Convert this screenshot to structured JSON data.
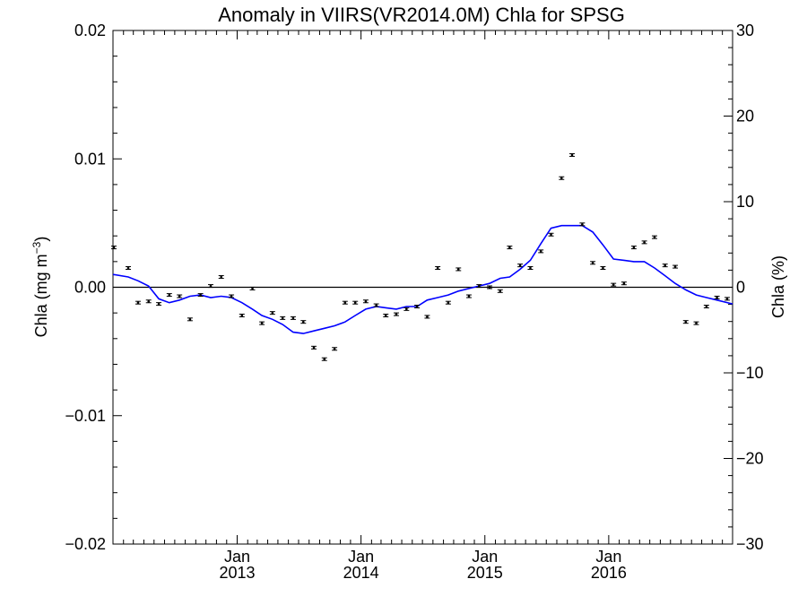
{
  "chart_data": {
    "type": "scatter",
    "title": "Anomaly in VIIRS(VR2014.0M) Chla for SPSG",
    "ylabel_left": "Chla (mg m",
    "ylabel_left_sup": "−3",
    "ylabel_left_end": ")",
    "ylabel_right": "Chla (%)",
    "ylim_left": [
      -0.02,
      0.02
    ],
    "ylim_right": [
      -30,
      30
    ],
    "xlim": [
      "2012-01-01",
      "2016-12-31"
    ],
    "grid": false,
    "legend": "none",
    "left_ticks": [
      {
        "value": 0.02,
        "label": "0.02"
      },
      {
        "value": 0.01,
        "label": "0.01"
      },
      {
        "value": 0.0,
        "label": "0.00"
      },
      {
        "value": -0.01,
        "label": "−0.01"
      },
      {
        "value": -0.02,
        "label": "−0.02"
      }
    ],
    "right_ticks": [
      {
        "value": 30,
        "label": "30"
      },
      {
        "value": 20,
        "label": "20"
      },
      {
        "value": 10,
        "label": "10"
      },
      {
        "value": 0,
        "label": "0"
      },
      {
        "value": -10,
        "label": "−10"
      },
      {
        "value": -20,
        "label": "−20"
      },
      {
        "value": -30,
        "label": "−30"
      }
    ],
    "x_ticks": [
      {
        "date": "2013-01-01",
        "month": "Jan",
        "year": "2013"
      },
      {
        "date": "2014-01-01",
        "month": "Jan",
        "year": "2014"
      },
      {
        "date": "2015-01-01",
        "month": "Jan",
        "year": "2015"
      },
      {
        "date": "2016-01-01",
        "month": "Jan",
        "year": "2016"
      }
    ],
    "colors": {
      "points": "#000000",
      "smooth_line": "#0000ff",
      "zero_line": "#000000"
    },
    "monthly_anomaly": {
      "x": [
        "2012-01",
        "2012-02",
        "2012-03",
        "2012-04",
        "2012-05",
        "2012-06",
        "2012-07",
        "2012-08",
        "2012-09",
        "2012-10",
        "2012-11",
        "2012-12",
        "2013-01",
        "2013-02",
        "2013-03",
        "2013-04",
        "2013-05",
        "2013-06",
        "2013-07",
        "2013-08",
        "2013-09",
        "2013-10",
        "2013-11",
        "2013-12",
        "2014-01",
        "2014-02",
        "2014-03",
        "2014-04",
        "2014-05",
        "2014-06",
        "2014-07",
        "2014-08",
        "2014-09",
        "2014-10",
        "2014-11",
        "2014-12",
        "2015-01",
        "2015-02",
        "2015-03",
        "2015-04",
        "2015-05",
        "2015-06",
        "2015-07",
        "2015-08",
        "2015-09",
        "2015-10",
        "2015-11",
        "2015-12",
        "2016-01",
        "2016-02",
        "2016-03",
        "2016-04",
        "2016-05",
        "2016-06",
        "2016-07",
        "2016-08",
        "2016-09",
        "2016-10",
        "2016-11",
        "2016-12"
      ],
      "y": [
        0.0031,
        0.0015,
        -0.0012,
        -0.0011,
        -0.0013,
        -0.0006,
        -0.0007,
        -0.0025,
        -0.0006,
        0.0001,
        0.0008,
        -0.0007,
        -0.0022,
        -0.0001,
        -0.0028,
        -0.002,
        -0.0024,
        -0.0024,
        -0.0027,
        -0.0047,
        -0.0056,
        -0.0048,
        -0.0012,
        -0.0012,
        -0.0011,
        -0.0014,
        -0.0022,
        -0.0021,
        -0.0017,
        -0.0015,
        -0.0023,
        0.0015,
        -0.0012,
        0.0014,
        -0.0007,
        0.0001,
        0.0,
        -0.0003,
        0.0031,
        0.0017,
        0.0015,
        0.0028,
        0.0041,
        0.0085,
        0.0103,
        0.0049,
        0.0019,
        0.0015,
        0.0002,
        0.0003,
        0.0031,
        0.0035,
        0.0039,
        0.0017,
        0.0016,
        -0.0027,
        -0.0028,
        -0.0015,
        -0.0008,
        -0.0009
      ]
    },
    "smoothed_anomaly": {
      "x": [
        "2012-01",
        "2012-02",
        "2012-03",
        "2012-04",
        "2012-05",
        "2012-06",
        "2012-07",
        "2012-08",
        "2012-09",
        "2012-10",
        "2012-11",
        "2012-12",
        "2013-01",
        "2013-02",
        "2013-03",
        "2013-04",
        "2013-05",
        "2013-06",
        "2013-07",
        "2013-08",
        "2013-09",
        "2013-10",
        "2013-11",
        "2013-12",
        "2014-01",
        "2014-02",
        "2014-03",
        "2014-04",
        "2014-05",
        "2014-06",
        "2014-07",
        "2014-08",
        "2014-09",
        "2014-10",
        "2014-11",
        "2014-12",
        "2015-01",
        "2015-02",
        "2015-03",
        "2015-04",
        "2015-05",
        "2015-06",
        "2015-07",
        "2015-08",
        "2015-09",
        "2015-10",
        "2015-11",
        "2015-12",
        "2016-01",
        "2016-02",
        "2016-03",
        "2016-04",
        "2016-05",
        "2016-06",
        "2016-07",
        "2016-08",
        "2016-09",
        "2016-10",
        "2016-11",
        "2016-12"
      ],
      "y": [
        0.001,
        0.0008,
        0.0005,
        0.0001,
        -0.0009,
        -0.0012,
        -0.001,
        -0.0007,
        -0.0006,
        -0.0008,
        -0.0007,
        -0.0008,
        -0.0012,
        -0.0017,
        -0.0022,
        -0.0025,
        -0.0029,
        -0.0035,
        -0.0036,
        -0.0034,
        -0.0032,
        -0.003,
        -0.0027,
        -0.0022,
        -0.0017,
        -0.0015,
        -0.0016,
        -0.0017,
        -0.0015,
        -0.0015,
        -0.001,
        -0.0008,
        -0.0006,
        -0.0003,
        -0.0001,
        0.0001,
        0.0003,
        0.0007,
        0.0008,
        0.0014,
        0.0021,
        0.0034,
        0.0046,
        0.0048,
        0.0048,
        0.0048,
        0.0043,
        0.0033,
        0.0022,
        0.0021,
        0.002,
        0.002,
        0.0015,
        0.0009,
        0.0003,
        -0.0002,
        -0.0006,
        -0.0008,
        -0.001,
        -0.0013
      ]
    }
  }
}
